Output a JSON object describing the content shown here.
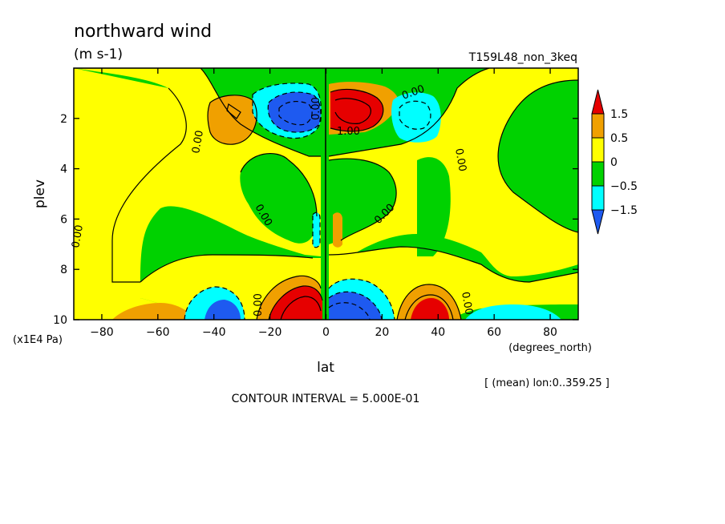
{
  "chart_data": {
    "type": "heatmap",
    "title": "northward wind",
    "units": "(m s-1)",
    "run_label": "T159L48_non_3keq",
    "xlabel": "lat",
    "xunits": "(degrees_north)",
    "ylabel": "plev",
    "yscale_label": "(x1E4 Pa)",
    "mean_note": "[ (mean) lon:0..359.25 ]",
    "contour_interval_text": "CONTOUR INTERVAL = 5.000E-01",
    "xlim": [
      -90,
      90
    ],
    "ylim": [
      0,
      10
    ],
    "y_inverted": true,
    "x_ticks": [
      -80,
      -60,
      -40,
      -20,
      0,
      20,
      40,
      60,
      80
    ],
    "y_ticks": [
      2,
      4,
      6,
      8,
      10
    ],
    "contour_labels": [
      "0.00",
      "0.00",
      "0.00",
      "0.00",
      "0.00",
      "0.00",
      "0.00",
      "0.00",
      "1.00",
      "0.00"
    ],
    "colorbar": {
      "levels": [
        "1.5",
        "0.5",
        "0",
        "-0.5",
        "-1.5"
      ],
      "colors": [
        "#e60000",
        "#f0a000",
        "#ffff00",
        "#00d200",
        "#00ffff",
        "#1e5af0"
      ]
    },
    "colors": {
      "red": "#e60000",
      "orange": "#f0a000",
      "yellow": "#ffff00",
      "green": "#00d200",
      "cyan": "#00ffff",
      "blue": "#1e5af0"
    }
  }
}
